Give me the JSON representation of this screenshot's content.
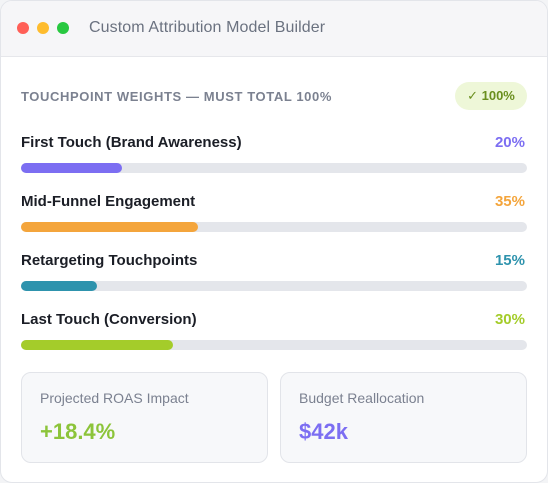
{
  "window": {
    "title": "Custom Attribution Model Builder"
  },
  "section": {
    "header": "TOUCHPOINT WEIGHTS — MUST TOTAL 100%",
    "total_badge": "✓ 100%",
    "total_color": "#6a8f1e"
  },
  "touchpoints": [
    {
      "label": "First Touch (Brand Awareness)",
      "percent_text": "20%",
      "weight": 0.2,
      "color": "#7c6ef2"
    },
    {
      "label": "Mid-Funnel Engagement",
      "percent_text": "35%",
      "weight": 0.35,
      "color": "#f4a53c"
    },
    {
      "label": "Retargeting Touchpoints",
      "percent_text": "15%",
      "weight": 0.15,
      "color": "#2e93ad"
    },
    {
      "label": "Last Touch (Conversion)",
      "percent_text": "30%",
      "weight": 0.3,
      "color": "#a4cc2a"
    }
  ],
  "metrics": {
    "roas": {
      "label": "Projected ROAS Impact",
      "value": "+18.4%",
      "color": "#8cc43a"
    },
    "budget": {
      "label": "Budget Reallocation",
      "value": "$42k",
      "color": "#7c6ef2"
    }
  }
}
